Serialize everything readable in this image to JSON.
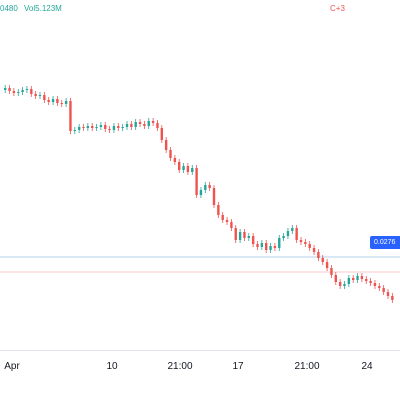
{
  "header": {
    "prefix": "C+3",
    "change_value": "0480",
    "volume": "Vol5.123M",
    "up_color": "#26a69a",
    "down_color": "#ef5350"
  },
  "price_tag": {
    "value": "0.0276",
    "color": "#2962ff"
  },
  "xaxis_labels": [
    "Apr",
    "10",
    "21:00",
    "17",
    "21:00",
    "24"
  ],
  "chart_data": {
    "type": "candlestick",
    "x_labels": [
      "Apr",
      "10",
      "21:00",
      "17",
      "21:00",
      "24"
    ],
    "current_price": "0.0276",
    "y_unit": "price",
    "grid": false,
    "candles": [
      {
        "o": 90,
        "c": 88
      },
      {
        "o": 88,
        "c": 91
      },
      {
        "o": 91,
        "c": 93
      },
      {
        "o": 93,
        "c": 92
      },
      {
        "o": 92,
        "c": 90
      },
      {
        "o": 90,
        "c": 89
      },
      {
        "o": 89,
        "c": 94
      },
      {
        "o": 94,
        "c": 96
      },
      {
        "o": 96,
        "c": 95
      },
      {
        "o": 95,
        "c": 100
      },
      {
        "o": 100,
        "c": 102
      },
      {
        "o": 102,
        "c": 99
      },
      {
        "o": 99,
        "c": 103
      },
      {
        "o": 103,
        "c": 104
      },
      {
        "o": 104,
        "c": 101
      },
      {
        "o": 101,
        "c": 131
      },
      {
        "o": 131,
        "c": 130
      },
      {
        "o": 130,
        "c": 127
      },
      {
        "o": 127,
        "c": 128
      },
      {
        "o": 128,
        "c": 126
      },
      {
        "o": 126,
        "c": 128
      },
      {
        "o": 128,
        "c": 127
      },
      {
        "o": 127,
        "c": 125
      },
      {
        "o": 125,
        "c": 129
      },
      {
        "o": 129,
        "c": 130
      },
      {
        "o": 130,
        "c": 126
      },
      {
        "o": 126,
        "c": 128
      },
      {
        "o": 128,
        "c": 127
      },
      {
        "o": 127,
        "c": 124
      },
      {
        "o": 124,
        "c": 127
      },
      {
        "o": 127,
        "c": 122
      },
      {
        "o": 122,
        "c": 124
      },
      {
        "o": 124,
        "c": 126
      },
      {
        "o": 126,
        "c": 121
      },
      {
        "o": 121,
        "c": 123
      },
      {
        "o": 123,
        "c": 128
      },
      {
        "o": 128,
        "c": 140
      },
      {
        "o": 140,
        "c": 150
      },
      {
        "o": 150,
        "c": 158
      },
      {
        "o": 158,
        "c": 162
      },
      {
        "o": 162,
        "c": 170
      },
      {
        "o": 170,
        "c": 166
      },
      {
        "o": 166,
        "c": 172
      },
      {
        "o": 172,
        "c": 168
      },
      {
        "o": 168,
        "c": 195
      },
      {
        "o": 195,
        "c": 190
      },
      {
        "o": 190,
        "c": 185
      },
      {
        "o": 185,
        "c": 188
      },
      {
        "o": 188,
        "c": 205
      },
      {
        "o": 205,
        "c": 215
      },
      {
        "o": 215,
        "c": 220
      },
      {
        "o": 220,
        "c": 222
      },
      {
        "o": 222,
        "c": 228
      },
      {
        "o": 228,
        "c": 240
      },
      {
        "o": 240,
        "c": 232
      },
      {
        "o": 232,
        "c": 238
      },
      {
        "o": 238,
        "c": 236
      },
      {
        "o": 236,
        "c": 244
      },
      {
        "o": 244,
        "c": 247
      },
      {
        "o": 247,
        "c": 243
      },
      {
        "o": 243,
        "c": 250
      },
      {
        "o": 250,
        "c": 246
      },
      {
        "o": 246,
        "c": 248
      },
      {
        "o": 248,
        "c": 238
      },
      {
        "o": 238,
        "c": 236
      },
      {
        "o": 236,
        "c": 231
      },
      {
        "o": 231,
        "c": 228
      },
      {
        "o": 228,
        "c": 240
      },
      {
        "o": 240,
        "c": 242
      },
      {
        "o": 242,
        "c": 244
      },
      {
        "o": 244,
        "c": 248
      },
      {
        "o": 248,
        "c": 252
      },
      {
        "o": 252,
        "c": 258
      },
      {
        "o": 258,
        "c": 262
      },
      {
        "o": 262,
        "c": 268
      },
      {
        "o": 268,
        "c": 275
      },
      {
        "o": 275,
        "c": 282
      },
      {
        "o": 282,
        "c": 286
      },
      {
        "o": 286,
        "c": 284
      },
      {
        "o": 284,
        "c": 278
      },
      {
        "o": 278,
        "c": 280
      },
      {
        "o": 280,
        "c": 276
      },
      {
        "o": 276,
        "c": 279
      },
      {
        "o": 279,
        "c": 281
      },
      {
        "o": 281,
        "c": 283
      },
      {
        "o": 283,
        "c": 286
      },
      {
        "o": 286,
        "c": 288
      },
      {
        "o": 288,
        "c": 292
      },
      {
        "o": 292,
        "c": 296
      },
      {
        "o": 296,
        "c": 300
      }
    ]
  }
}
